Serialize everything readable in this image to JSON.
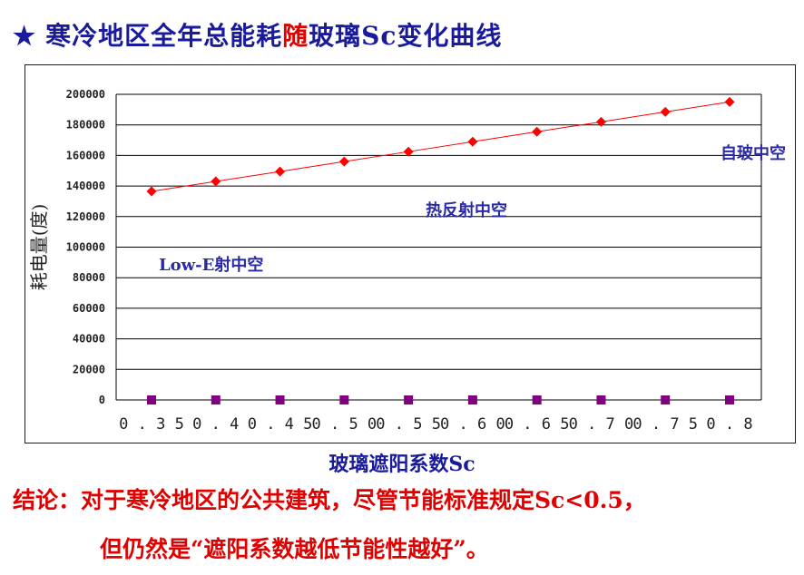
{
  "slide": {
    "star": "★",
    "title_part1": "寒冷地区全年总能耗",
    "title_highlight": "随",
    "title_part2": "玻璃Sc变化曲线",
    "conclusion_line1": "结论：对于寒冷地区的公共建筑，尽管节能标准规定Sc<0.5，",
    "conclusion_line2": "但仍然是“遮阳系数越低节能性越好”。"
  },
  "colors": {
    "title": "#1a1a9c",
    "highlight": "#e00000",
    "series_energy": "#ff0000",
    "series_zero": "#800080",
    "annotation": "#2a2aa8"
  },
  "chart_data": {
    "type": "line",
    "xlabel": "玻璃遮阳系数Sc",
    "ylabel": "耗电量(度)",
    "categories": [
      "0.35",
      "0.4",
      "0.45",
      "0.50",
      "0.55",
      "0.60",
      "0.65",
      "0.70",
      "0.75",
      "0.8"
    ],
    "y_ticks": [
      "200000",
      "180000",
      "160000",
      "140000",
      "120000",
      "100000",
      "80000",
      "60000",
      "40000",
      "20000",
      "0"
    ],
    "ylim": [
      0,
      200000
    ],
    "grid": true,
    "series": [
      {
        "values": [
          136500,
          143000,
          149500,
          156000,
          162500,
          169000,
          175500,
          182000,
          188500,
          195000
        ],
        "marker": "diamond",
        "color": "#ff0000"
      },
      {
        "values": [
          0,
          0,
          0,
          0,
          0,
          0,
          0,
          0,
          0,
          0
        ],
        "marker": "square",
        "color": "#800080"
      }
    ],
    "annotations": [
      "自玻中空",
      "热反射中空",
      "Low-E射中空"
    ]
  }
}
